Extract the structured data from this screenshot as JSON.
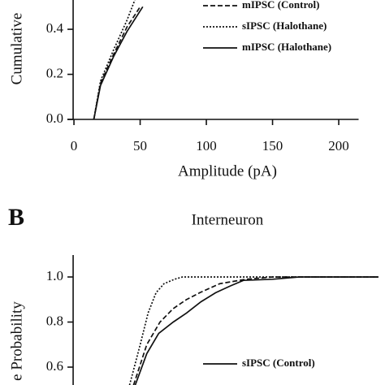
{
  "chart_data": [
    {
      "type": "line",
      "ylabel": "Cumulative",
      "xlabel": "Amplitude (pA)",
      "xlim": [
        -5,
        215
      ],
      "ylim": [
        0,
        0.53
      ],
      "xticks": [
        0,
        50,
        100,
        150,
        200
      ],
      "yticks": [
        {
          "value": 0,
          "label": "0.0"
        },
        0.2,
        0.4
      ],
      "series": [
        {
          "name": "mIPSC (Control)",
          "color": "#111111",
          "dash": "6,3",
          "x": [
            15,
            20,
            30,
            40,
            50
          ],
          "values": [
            0,
            0.16,
            0.29,
            0.41,
            0.5
          ]
        },
        {
          "name": "sIPSC (Halothane)",
          "color": "#111111",
          "dash": "2,2",
          "x": [
            15,
            20,
            30,
            40,
            46
          ],
          "values": [
            0,
            0.17,
            0.31,
            0.44,
            0.53
          ]
        },
        {
          "name": "mIPSC (Halothane)",
          "color": "#111111",
          "dash": "none",
          "x": [
            15,
            20,
            30,
            40,
            52
          ],
          "values": [
            0,
            0.15,
            0.28,
            0.39,
            0.5
          ]
        }
      ]
    },
    {
      "type": "line",
      "panel": "B",
      "title": "Interneuron",
      "ylabel": "e Probability",
      "xlim": [
        -5,
        215
      ],
      "ylim": [
        0.5,
        1.1
      ],
      "yticks": [
        0.6,
        0.8,
        {
          "value": 1,
          "label": "1.0"
        }
      ],
      "series": [
        {
          "name": "sIPSC (Control)",
          "color": "#111111",
          "dash": "none",
          "x": [
            45,
            55,
            64,
            75,
            85,
            96,
            107,
            118,
            128,
            150,
            170,
            200,
            230
          ],
          "values": [
            0.5,
            0.66,
            0.75,
            0.8,
            0.84,
            0.89,
            0.93,
            0.96,
            0.985,
            0.99,
            1,
            1,
            1
          ]
        },
        {
          "name": "",
          "color": "#111111",
          "dash": "6,3",
          "x": [
            45,
            55,
            65,
            75,
            85,
            95,
            110,
            130,
            150,
            230
          ],
          "values": [
            0.52,
            0.7,
            0.8,
            0.86,
            0.9,
            0.93,
            0.97,
            0.99,
            1,
            1
          ]
        },
        {
          "name": "",
          "color": "#111111",
          "dash": "2,2",
          "x": [
            42,
            50,
            56,
            62,
            68,
            76,
            82,
            100,
            230
          ],
          "values": [
            0.52,
            0.7,
            0.84,
            0.93,
            0.97,
            0.99,
            1,
            1,
            1
          ]
        }
      ]
    }
  ]
}
